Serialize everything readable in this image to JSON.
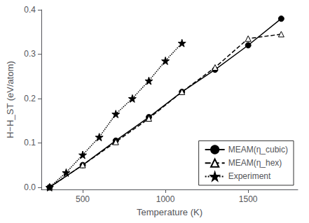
{
  "chart_data": {
    "type": "line",
    "xlabel": "Temperature (K)",
    "ylabel": "H−H_ST (eV/atom)",
    "xlim": [
      250,
      1800
    ],
    "ylim": [
      -0.005,
      0.4
    ],
    "xticks": [
      500,
      1000,
      1500
    ],
    "yticks": [
      {
        "value": 0.0,
        "label": "0.0"
      },
      0.1,
      0.2,
      0.3,
      0.4
    ],
    "grid": false,
    "legend": "lower right",
    "series": [
      {
        "name": "MEAM(η_cubic)",
        "color": "black",
        "marker": "circle",
        "line_style": "solid",
        "x": [
          300,
          500,
          700,
          900,
          1100,
          1300,
          1500,
          1700
        ],
        "values": [
          0.0,
          0.05,
          0.105,
          0.158,
          0.215,
          0.265,
          0.32,
          0.38
        ]
      },
      {
        "name": "MEAM(η_hex)",
        "color": "black",
        "marker": "open_triangle",
        "line_style": "dashed",
        "x": [
          300,
          500,
          700,
          900,
          1100,
          1300,
          1500,
          1700
        ],
        "values": [
          0.0,
          0.05,
          0.102,
          0.155,
          0.215,
          0.27,
          0.335,
          0.345
        ]
      },
      {
        "name": "Experiment",
        "color": "black",
        "marker": "star",
        "line_style": "dotted",
        "x": [
          300,
          400,
          500,
          600,
          700,
          800,
          900,
          1000,
          1100
        ],
        "values": [
          0.0,
          0.033,
          0.073,
          0.113,
          0.165,
          0.2,
          0.24,
          0.285,
          0.325
        ]
      }
    ]
  }
}
